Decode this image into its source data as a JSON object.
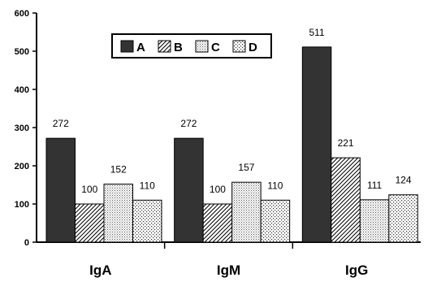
{
  "chart_data": {
    "type": "bar",
    "categories": [
      "IgA",
      "IgM",
      "IgG"
    ],
    "series": [
      {
        "name": "A",
        "values": [
          272,
          272,
          511
        ],
        "fill": "#333333",
        "pattern": "solid"
      },
      {
        "name": "B",
        "values": [
          100,
          100,
          221
        ],
        "fill": "#ffffff",
        "pattern": "diagonal-hatch"
      },
      {
        "name": "C",
        "values": [
          152,
          157,
          111
        ],
        "fill": "#ffffff",
        "pattern": "fine-dots"
      },
      {
        "name": "D",
        "values": [
          110,
          110,
          124
        ],
        "fill": "#ffffff",
        "pattern": "coarse-dots"
      }
    ],
    "y_ticks": [
      "0",
      "100",
      "200",
      "300",
      "400",
      "500",
      "600"
    ],
    "ylim": [
      0,
      600
    ],
    "legend": {
      "placement": "top-center",
      "frame": true
    },
    "grid": false,
    "title": "",
    "xlabel": "",
    "ylabel": ""
  }
}
